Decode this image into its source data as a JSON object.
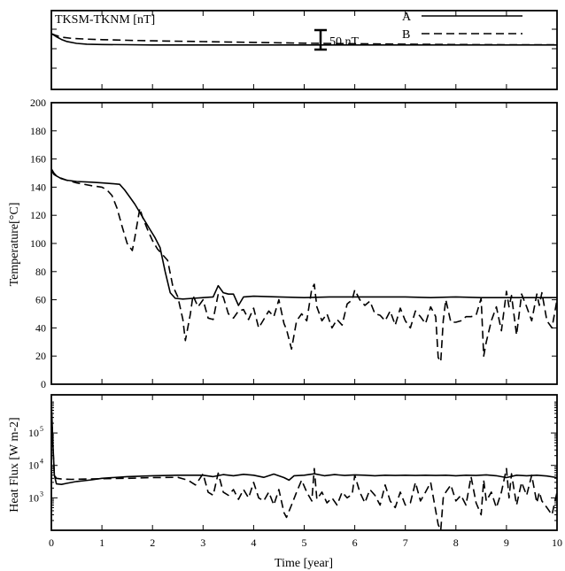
{
  "chart_data": [
    {
      "type": "line",
      "panel": "magnetic",
      "annotation": "TKSM-TKNM [nT]",
      "scale_bar_label": "50 nT",
      "scale_bar_value": 50,
      "xlim": [
        0,
        10
      ],
      "legend": {
        "placement": "top-right",
        "entries": [
          "A",
          "B"
        ]
      },
      "series": [
        {
          "name": "A",
          "style": "solid",
          "x": [
            0,
            0.1,
            0.2,
            0.3,
            0.5,
            0.7,
            1.0,
            1.5,
            2.0,
            3.0,
            4.0,
            5.0,
            6.0,
            7.0,
            8.0,
            9.0,
            10.0
          ],
          "y": [
            0,
            -8,
            -15,
            -20,
            -25,
            -27,
            -28,
            -28.5,
            -29,
            -29,
            -29,
            -29,
            -29,
            -29,
            -29,
            -29,
            -29
          ]
        },
        {
          "name": "B",
          "style": "dashed",
          "x": [
            0,
            0.1,
            0.2,
            0.4,
            0.7,
            1.0,
            1.5,
            2.0,
            3.0,
            4.0,
            5.0,
            6.0,
            7.0,
            8.0,
            9.0,
            10.0
          ],
          "y": [
            0,
            -5,
            -9,
            -12,
            -14,
            -15.5,
            -17,
            -18.5,
            -20.5,
            -22.5,
            -24.5,
            -26,
            -27,
            -28,
            -28.5,
            -28.5
          ]
        }
      ]
    },
    {
      "type": "line",
      "panel": "temperature",
      "ylabel": "Temperature[°C]",
      "ylim": [
        0,
        200
      ],
      "yticks": [
        "0",
        "20",
        "40",
        "60",
        "80",
        "100",
        "120",
        "140",
        "160",
        "180",
        "200"
      ],
      "xlim": [
        0,
        10
      ],
      "series": [
        {
          "name": "A",
          "style": "solid",
          "x": [
            0,
            0.05,
            0.1,
            0.2,
            0.3,
            0.5,
            0.8,
            1.0,
            1.2,
            1.35,
            1.45,
            1.55,
            1.65,
            1.75,
            1.85,
            1.95,
            2.05,
            2.15,
            2.25,
            2.35,
            2.45,
            2.6,
            2.8,
            3.0,
            3.2,
            3.3,
            3.4,
            3.5,
            3.6,
            3.7,
            3.8,
            4.0,
            4.5,
            5.0,
            5.5,
            6.0,
            6.5,
            7.0,
            7.5,
            8.0,
            8.5,
            9.0,
            9.5,
            10.0
          ],
          "y": [
            153,
            150,
            148,
            146,
            145,
            144,
            143.5,
            143,
            142.5,
            142,
            138,
            133,
            128,
            122,
            116,
            110,
            104,
            97,
            80,
            65,
            61,
            60.5,
            61,
            61.5,
            62,
            70,
            65,
            64,
            64,
            56,
            62,
            62.5,
            62,
            61.5,
            62,
            62,
            62,
            62,
            61.5,
            62,
            61.5,
            61.5,
            61.5,
            61.5
          ]
        },
        {
          "name": "B",
          "style": "dashed",
          "x": [
            0,
            0.05,
            0.15,
            0.3,
            0.5,
            0.8,
            1.0,
            1.1,
            1.2,
            1.3,
            1.4,
            1.5,
            1.6,
            1.65,
            1.75,
            1.8,
            1.9,
            2.0,
            2.1,
            2.2,
            2.3,
            2.4,
            2.5,
            2.6,
            2.65,
            2.75,
            2.8,
            2.9,
            3.0,
            3.1,
            3.2,
            3.3,
            3.4,
            3.5,
            3.6,
            3.7,
            3.8,
            3.9,
            4.0,
            4.1,
            4.2,
            4.3,
            4.4,
            4.5,
            4.6,
            4.65,
            4.75,
            4.85,
            4.95,
            5.05,
            5.15,
            5.2,
            5.25,
            5.35,
            5.45,
            5.55,
            5.65,
            5.75,
            5.85,
            5.95,
            6.0,
            6.1,
            6.2,
            6.3,
            6.4,
            6.5,
            6.6,
            6.7,
            6.8,
            6.9,
            7.0,
            7.1,
            7.2,
            7.3,
            7.4,
            7.5,
            7.6,
            7.65,
            7.7,
            7.75,
            7.8,
            7.9,
            8.0,
            8.1,
            8.2,
            8.3,
            8.4,
            8.5,
            8.55,
            8.6,
            8.7,
            8.8,
            8.9,
            9.0,
            9.05,
            9.1,
            9.2,
            9.3,
            9.4,
            9.5,
            9.6,
            9.65,
            9.7,
            9.8,
            9.9,
            10.0
          ],
          "y": [
            152,
            149,
            147,
            145,
            143,
            141,
            140,
            138,
            134,
            125,
            112,
            100,
            95,
            104,
            125,
            119,
            110,
            102,
            96,
            92,
            88,
            70,
            62,
            46,
            31,
            50,
            63,
            55,
            60,
            47,
            46,
            64,
            62,
            50,
            47,
            52,
            53,
            46,
            54,
            40,
            46,
            52,
            48,
            60,
            43,
            39,
            25,
            45,
            50,
            45,
            68,
            71,
            55,
            45,
            50,
            40,
            46,
            42,
            57,
            60,
            67,
            60,
            56,
            59,
            50,
            49,
            45,
            52,
            42,
            54,
            45,
            40,
            52,
            48,
            43,
            55,
            48,
            19,
            16,
            45,
            60,
            44,
            44,
            45,
            48,
            48,
            49,
            61,
            20,
            30,
            45,
            55,
            38,
            66,
            55,
            63,
            35,
            64,
            55,
            45,
            64,
            56,
            65,
            45,
            40,
            60
          ],
          "note": "values read approximately from the dashed trace"
        }
      ]
    },
    {
      "type": "line",
      "panel": "heat_flux",
      "ylabel": "Heat Flux [W m-2]",
      "yscale": "log",
      "ylim": [
        100,
        1500000
      ],
      "yticks": [
        "10^3",
        "10^4",
        "10^5"
      ],
      "xlim": [
        0,
        10
      ],
      "xlabel": "Time [year]",
      "xticks": [
        "0",
        "1",
        "2",
        "3",
        "4",
        "5",
        "6",
        "7",
        "8",
        "9",
        "10"
      ],
      "series": [
        {
          "name": "A",
          "style": "solid",
          "x": [
            0,
            0.03,
            0.06,
            0.1,
            0.2,
            0.3,
            0.5,
            0.8,
            1.0,
            1.5,
            2.0,
            2.5,
            3.0,
            3.2,
            3.4,
            3.6,
            3.8,
            4.0,
            4.2,
            4.4,
            4.6,
            4.7,
            4.8,
            5.0,
            5.2,
            5.4,
            5.6,
            5.8,
            6.0,
            6.2,
            6.4,
            6.6,
            6.8,
            7.0,
            7.2,
            7.4,
            7.6,
            7.8,
            8.0,
            8.2,
            8.4,
            8.6,
            8.8,
            9.0,
            9.2,
            9.4,
            9.6,
            9.8,
            10.0
          ],
          "y": [
            1000000,
            50000,
            5000,
            2700,
            2600,
            2800,
            3200,
            3600,
            4000,
            4500,
            4800,
            5000,
            5000,
            4500,
            5200,
            4800,
            5300,
            5000,
            4300,
            5400,
            4200,
            3500,
            4800,
            5000,
            5500,
            4800,
            5200,
            4900,
            5100,
            5000,
            4800,
            5000,
            4900,
            5000,
            4900,
            5000,
            4900,
            5000,
            4800,
            5000,
            4900,
            5100,
            4800,
            4200,
            5000,
            4800,
            5000,
            4700,
            4200
          ]
        },
        {
          "name": "B",
          "style": "dashed",
          "x": [
            0,
            0.03,
            0.06,
            0.1,
            0.2,
            0.4,
            0.7,
            1.0,
            1.5,
            2.0,
            2.5,
            2.7,
            2.85,
            3.0,
            3.1,
            3.2,
            3.3,
            3.4,
            3.5,
            3.6,
            3.7,
            3.8,
            3.9,
            4.0,
            4.1,
            4.2,
            4.3,
            4.4,
            4.5,
            4.6,
            4.65,
            4.75,
            4.85,
            4.95,
            5.05,
            5.15,
            5.2,
            5.25,
            5.35,
            5.45,
            5.55,
            5.65,
            5.75,
            5.85,
            5.95,
            6.0,
            6.1,
            6.2,
            6.3,
            6.4,
            6.5,
            6.6,
            6.7,
            6.8,
            6.9,
            7.0,
            7.1,
            7.2,
            7.3,
            7.4,
            7.5,
            7.6,
            7.65,
            7.7,
            7.75,
            7.8,
            7.9,
            8.0,
            8.1,
            8.2,
            8.3,
            8.4,
            8.5,
            8.55,
            8.6,
            8.7,
            8.8,
            8.9,
            9.0,
            9.05,
            9.1,
            9.2,
            9.3,
            9.4,
            9.5,
            9.6,
            9.65,
            9.7,
            9.8,
            9.9,
            10.0
          ],
          "y": [
            900000,
            40000,
            5000,
            4000,
            3800,
            3700,
            3800,
            3900,
            4000,
            4200,
            4300,
            3500,
            2500,
            5500,
            1500,
            1200,
            5800,
            1500,
            1200,
            1800,
            900,
            1800,
            1000,
            3000,
            1000,
            800,
            1500,
            600,
            1800,
            350,
            250,
            600,
            1500,
            3500,
            1500,
            800,
            8000,
            900,
            1500,
            700,
            1000,
            600,
            1500,
            1000,
            1300,
            5000,
            1500,
            700,
            1800,
            1200,
            600,
            2500,
            800,
            500,
            1500,
            600,
            700,
            3000,
            800,
            1500,
            3000,
            400,
            150,
            100,
            1000,
            1500,
            2500,
            800,
            1200,
            600,
            4500,
            700,
            300,
            3500,
            800,
            1500,
            500,
            1500,
            8000,
            1000,
            5500,
            600,
            3000,
            1200,
            5000,
            700,
            1500,
            800,
            500,
            300,
            1500
          ],
          "note": "values read approximately from the dashed trace"
        }
      ]
    }
  ]
}
